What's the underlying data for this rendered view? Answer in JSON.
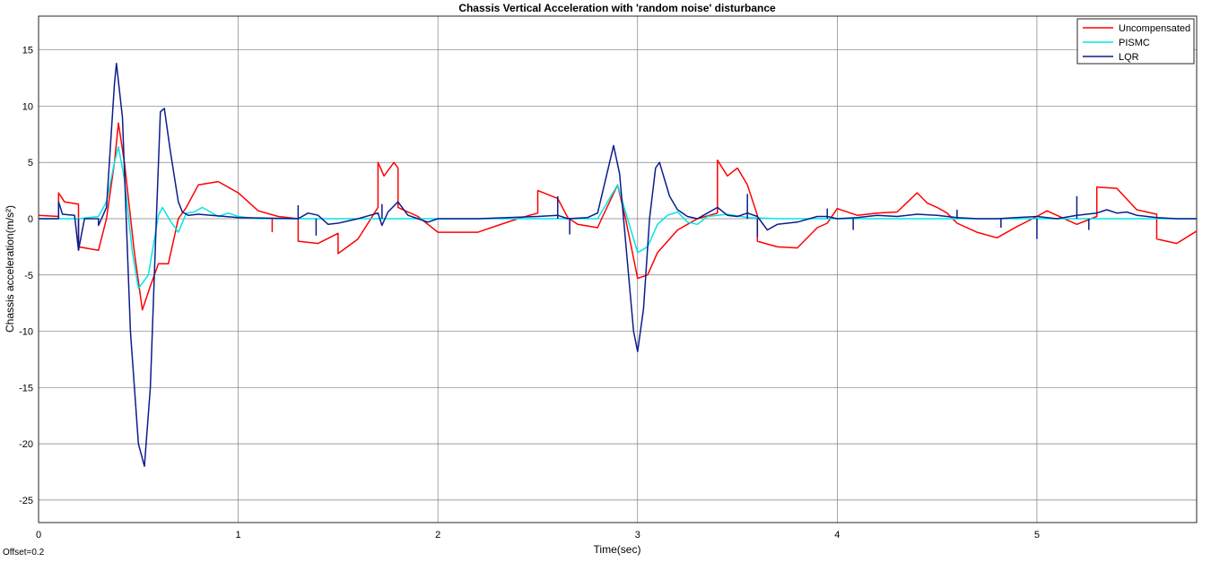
{
  "chart_data": {
    "type": "line",
    "title": "Chassis Vertical Acceleration with 'random noise' disturbance",
    "xlabel": "Time(sec)",
    "ylabel": "Chassis acceleration(m/s²)",
    "xlim": [
      0,
      5.8
    ],
    "ylim": [
      -27,
      18
    ],
    "xticks": [
      0,
      1,
      2,
      3,
      4,
      5
    ],
    "yticks": [
      -25,
      -20,
      -15,
      -10,
      -5,
      0,
      5,
      10,
      15
    ],
    "grid": true,
    "legend_position": "top-right",
    "series": [
      {
        "name": "Uncompensated",
        "color": "#ff0000",
        "points": [
          [
            0,
            0.3
          ],
          [
            0.1,
            0.2
          ],
          [
            0.1,
            2.3
          ],
          [
            0.13,
            1.5
          ],
          [
            0.2,
            1.3
          ],
          [
            0.2,
            -2.5
          ],
          [
            0.3,
            -2.8
          ],
          [
            0.34,
            0
          ],
          [
            0.38,
            5
          ],
          [
            0.4,
            8.5
          ],
          [
            0.43,
            5
          ],
          [
            0.48,
            -3
          ],
          [
            0.52,
            -8.1
          ],
          [
            0.56,
            -6
          ],
          [
            0.6,
            -4
          ],
          [
            0.65,
            -4
          ],
          [
            0.7,
            0
          ],
          [
            0.74,
            1
          ],
          [
            0.8,
            3
          ],
          [
            0.9,
            3.3
          ],
          [
            1.0,
            2.3
          ],
          [
            1.1,
            0.7
          ],
          [
            1.2,
            0.2
          ],
          [
            1.3,
            0
          ],
          [
            1.3,
            -2
          ],
          [
            1.4,
            -2.2
          ],
          [
            1.5,
            -1.3
          ],
          [
            1.5,
            -3.1
          ],
          [
            1.6,
            -1.8
          ],
          [
            1.7,
            1
          ],
          [
            1.7,
            5
          ],
          [
            1.73,
            3.8
          ],
          [
            1.78,
            5
          ],
          [
            1.8,
            4.5
          ],
          [
            1.8,
            1
          ],
          [
            1.9,
            0.2
          ],
          [
            2.0,
            -1.2
          ],
          [
            2.2,
            -1.2
          ],
          [
            2.3,
            -0.6
          ],
          [
            2.4,
            0
          ],
          [
            2.5,
            0.5
          ],
          [
            2.5,
            2.5
          ],
          [
            2.6,
            1.8
          ],
          [
            2.65,
            0.1
          ],
          [
            2.7,
            -0.5
          ],
          [
            2.8,
            -0.8
          ],
          [
            2.82,
            0
          ],
          [
            2.9,
            3
          ],
          [
            2.94,
            0
          ],
          [
            3.0,
            -5.3
          ],
          [
            3.05,
            -5
          ],
          [
            3.1,
            -3
          ],
          [
            3.2,
            -1
          ],
          [
            3.3,
            0
          ],
          [
            3.4,
            0.5
          ],
          [
            3.4,
            5.2
          ],
          [
            3.45,
            3.8
          ],
          [
            3.5,
            4.5
          ],
          [
            3.55,
            3
          ],
          [
            3.6,
            0.3
          ],
          [
            3.6,
            -2
          ],
          [
            3.7,
            -2.5
          ],
          [
            3.8,
            -2.6
          ],
          [
            3.9,
            -0.8
          ],
          [
            3.95,
            -0.4
          ],
          [
            4.0,
            0.9
          ],
          [
            4.1,
            0.3
          ],
          [
            4.2,
            0.5
          ],
          [
            4.3,
            0.6
          ],
          [
            4.4,
            2.3
          ],
          [
            4.45,
            1.4
          ],
          [
            4.5,
            1
          ],
          [
            4.55,
            0.5
          ],
          [
            4.6,
            -0.4
          ],
          [
            4.7,
            -1.2
          ],
          [
            4.8,
            -1.7
          ],
          [
            4.9,
            -0.7
          ],
          [
            5.0,
            0.2
          ],
          [
            5.05,
            0.7
          ],
          [
            5.1,
            0.3
          ],
          [
            5.2,
            -0.5
          ],
          [
            5.3,
            0.2
          ],
          [
            5.3,
            2.8
          ],
          [
            5.4,
            2.7
          ],
          [
            5.5,
            0.8
          ],
          [
            5.6,
            0.4
          ],
          [
            5.6,
            -1.8
          ],
          [
            5.7,
            -2.2
          ],
          [
            5.8,
            -1.1
          ]
        ]
      },
      {
        "name": "PISMC",
        "color": "#00e6e6",
        "points": [
          [
            0,
            0
          ],
          [
            0.1,
            0
          ],
          [
            0.2,
            0
          ],
          [
            0.3,
            0.2
          ],
          [
            0.34,
            1.5
          ],
          [
            0.38,
            5
          ],
          [
            0.4,
            6.4
          ],
          [
            0.43,
            3.5
          ],
          [
            0.47,
            -3
          ],
          [
            0.5,
            -6.2
          ],
          [
            0.55,
            -5
          ],
          [
            0.6,
            0.3
          ],
          [
            0.62,
            1
          ],
          [
            0.66,
            -0.2
          ],
          [
            0.7,
            -1.2
          ],
          [
            0.74,
            0.5
          ],
          [
            0.78,
            0.6
          ],
          [
            0.82,
            1
          ],
          [
            0.9,
            0.2
          ],
          [
            0.95,
            0.5
          ],
          [
            1.0,
            0.2
          ],
          [
            1.1,
            0
          ],
          [
            1.3,
            0
          ],
          [
            2.8,
            0
          ],
          [
            2.9,
            3
          ],
          [
            2.95,
            0
          ],
          [
            3.0,
            -3
          ],
          [
            3.05,
            -2.5
          ],
          [
            3.1,
            -0.5
          ],
          [
            3.15,
            0.3
          ],
          [
            3.2,
            0.6
          ],
          [
            3.25,
            -0.3
          ],
          [
            3.3,
            -0.5
          ],
          [
            3.35,
            0.2
          ],
          [
            3.45,
            0.4
          ],
          [
            3.55,
            0.1
          ],
          [
            3.7,
            0
          ],
          [
            5.8,
            0
          ]
        ]
      },
      {
        "name": "LQR",
        "color": "#0a1e8c",
        "points": [
          [
            0,
            0
          ],
          [
            0.1,
            0
          ],
          [
            0.1,
            1.5
          ],
          [
            0.12,
            0.4
          ],
          [
            0.18,
            0.3
          ],
          [
            0.2,
            -2.8
          ],
          [
            0.23,
            0
          ],
          [
            0.3,
            0
          ],
          [
            0.3,
            -0.6
          ],
          [
            0.34,
            1
          ],
          [
            0.38,
            12
          ],
          [
            0.39,
            13.8
          ],
          [
            0.42,
            9
          ],
          [
            0.46,
            -10
          ],
          [
            0.5,
            -20
          ],
          [
            0.53,
            -22
          ],
          [
            0.56,
            -15
          ],
          [
            0.59,
            0
          ],
          [
            0.61,
            9.5
          ],
          [
            0.63,
            9.8
          ],
          [
            0.66,
            6
          ],
          [
            0.7,
            1.5
          ],
          [
            0.72,
            0.6
          ],
          [
            0.75,
            0.3
          ],
          [
            0.8,
            0.4
          ],
          [
            1.0,
            0.1
          ],
          [
            1.3,
            0
          ],
          [
            1.35,
            0.5
          ],
          [
            1.4,
            0.3
          ],
          [
            1.45,
            -0.5
          ],
          [
            1.5,
            -0.4
          ],
          [
            1.55,
            -0.2
          ],
          [
            1.6,
            0
          ],
          [
            1.7,
            0.5
          ],
          [
            1.72,
            -0.6
          ],
          [
            1.75,
            0.6
          ],
          [
            1.8,
            1.5
          ],
          [
            1.85,
            0.3
          ],
          [
            1.9,
            0
          ],
          [
            1.95,
            -0.3
          ],
          [
            2.0,
            0
          ],
          [
            2.2,
            0
          ],
          [
            2.5,
            0.2
          ],
          [
            2.6,
            0.3
          ],
          [
            2.65,
            0
          ],
          [
            2.75,
            0.1
          ],
          [
            2.8,
            0.5
          ],
          [
            2.86,
            5
          ],
          [
            2.88,
            6.5
          ],
          [
            2.91,
            4
          ],
          [
            2.95,
            -4
          ],
          [
            2.98,
            -10
          ],
          [
            3.0,
            -11.8
          ],
          [
            3.03,
            -8
          ],
          [
            3.06,
            0
          ],
          [
            3.09,
            4.5
          ],
          [
            3.11,
            5
          ],
          [
            3.16,
            2
          ],
          [
            3.2,
            0.8
          ],
          [
            3.25,
            0.2
          ],
          [
            3.3,
            0
          ],
          [
            3.35,
            0.5
          ],
          [
            3.4,
            1
          ],
          [
            3.45,
            0.3
          ],
          [
            3.5,
            0.2
          ],
          [
            3.55,
            0.5
          ],
          [
            3.6,
            0.2
          ],
          [
            3.65,
            -1
          ],
          [
            3.7,
            -0.5
          ],
          [
            3.8,
            -0.3
          ],
          [
            3.9,
            0.2
          ],
          [
            3.95,
            0.2
          ],
          [
            4.0,
            0
          ],
          [
            4.1,
            0.1
          ],
          [
            4.2,
            0.3
          ],
          [
            4.3,
            0.2
          ],
          [
            4.4,
            0.4
          ],
          [
            4.5,
            0.3
          ],
          [
            4.6,
            0.1
          ],
          [
            4.7,
            0
          ],
          [
            4.8,
            0
          ],
          [
            5.0,
            0.2
          ],
          [
            5.1,
            0
          ],
          [
            5.2,
            0.3
          ],
          [
            5.3,
            0.5
          ],
          [
            5.35,
            0.8
          ],
          [
            5.4,
            0.5
          ],
          [
            5.45,
            0.6
          ],
          [
            5.5,
            0.3
          ],
          [
            5.6,
            0.1
          ],
          [
            5.7,
            0
          ],
          [
            5.8,
            0
          ]
        ]
      }
    ],
    "spikes": [
      {
        "series": 0,
        "x": 1.17,
        "y1": 0,
        "y2": -1.2
      },
      {
        "series": 2,
        "x": 0.2,
        "y1": 0,
        "y2": -2.8
      },
      {
        "series": 2,
        "x": 1.3,
        "y1": 0,
        "y2": 1.2
      },
      {
        "series": 2,
        "x": 1.39,
        "y1": 0,
        "y2": -1.5
      },
      {
        "series": 2,
        "x": 1.72,
        "y1": 0,
        "y2": 1.3
      },
      {
        "series": 2,
        "x": 2.6,
        "y1": 0,
        "y2": 2
      },
      {
        "series": 2,
        "x": 2.66,
        "y1": 0,
        "y2": -1.4
      },
      {
        "series": 2,
        "x": 3.55,
        "y1": 0,
        "y2": 2.2
      },
      {
        "series": 2,
        "x": 3.6,
        "y1": 0,
        "y2": -1.6
      },
      {
        "series": 2,
        "x": 3.95,
        "y1": 0,
        "y2": 0.9
      },
      {
        "series": 2,
        "x": 4.08,
        "y1": 0,
        "y2": -1
      },
      {
        "series": 2,
        "x": 4.6,
        "y1": 0,
        "y2": 0.8
      },
      {
        "series": 2,
        "x": 4.82,
        "y1": 0,
        "y2": -0.8
      },
      {
        "series": 2,
        "x": 5.0,
        "y1": 0,
        "y2": -1.8
      },
      {
        "series": 2,
        "x": 5.2,
        "y1": 0,
        "y2": 2
      },
      {
        "series": 2,
        "x": 5.26,
        "y1": 0,
        "y2": -1
      }
    ]
  },
  "footnote": "Offset=0.2"
}
